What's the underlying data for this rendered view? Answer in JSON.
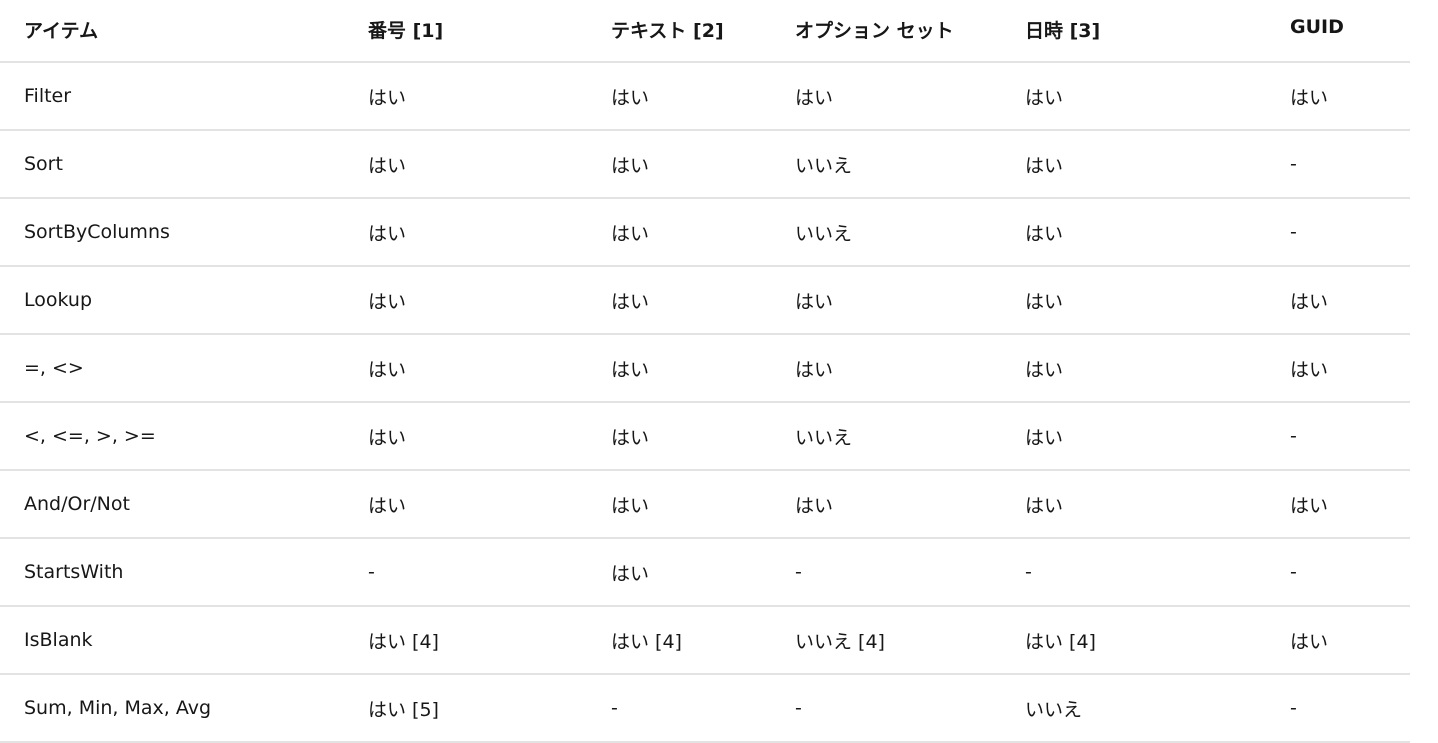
{
  "table": {
    "headers": [
      "アイテム",
      "番号 [1]",
      "テキスト [2]",
      "オプション セット",
      "日時 [3]",
      "GUID"
    ],
    "rows": [
      [
        "Filter",
        "はい",
        "はい",
        "はい",
        "はい",
        "はい"
      ],
      [
        "Sort",
        "はい",
        "はい",
        "いいえ",
        "はい",
        "-"
      ],
      [
        "SortByColumns",
        "はい",
        "はい",
        "いいえ",
        "はい",
        "-"
      ],
      [
        "Lookup",
        "はい",
        "はい",
        "はい",
        "はい",
        "はい"
      ],
      [
        "=, <>",
        "はい",
        "はい",
        "はい",
        "はい",
        "はい"
      ],
      [
        "<, <=, >, >=",
        "はい",
        "はい",
        "いいえ",
        "はい",
        "-"
      ],
      [
        "And/Or/Not",
        "はい",
        "はい",
        "はい",
        "はい",
        "はい"
      ],
      [
        "StartsWith",
        "-",
        "はい",
        "-",
        "-",
        "-"
      ],
      [
        "IsBlank",
        "はい [4]",
        "はい [4]",
        "いいえ [4]",
        "はい [4]",
        "はい"
      ],
      [
        "Sum, Min, Max, Avg",
        "はい [5]",
        "-",
        "-",
        "いいえ",
        "-"
      ]
    ]
  }
}
